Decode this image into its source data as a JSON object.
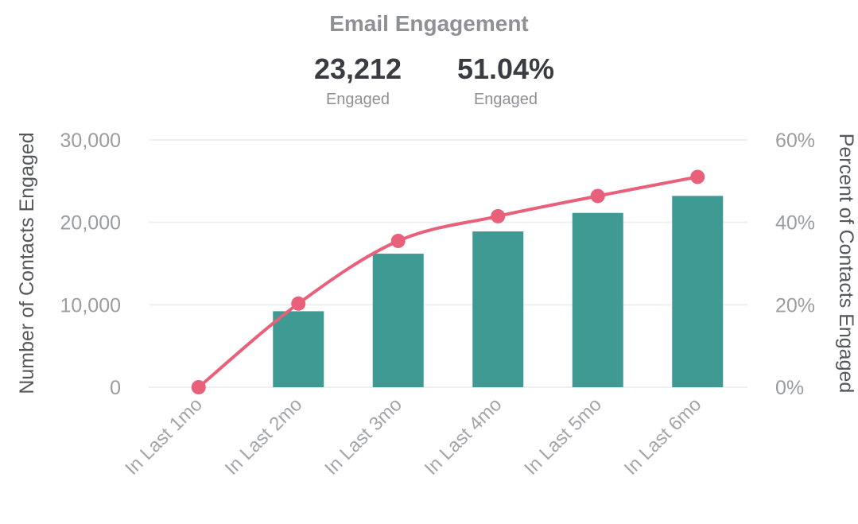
{
  "chart_data": {
    "type": "bar+line",
    "title": "Email Engagement",
    "kpis": [
      {
        "value": "23,212",
        "label": "Engaged"
      },
      {
        "value": "51.04%",
        "label": "Engaged"
      }
    ],
    "categories": [
      "In Last 1mo",
      "In Last 2mo",
      "In Last 3mo",
      "In Last 4mo",
      "In Last 5mo",
      "In Last 6mo"
    ],
    "series": [
      {
        "name": "Number of Contacts Engaged",
        "type": "bar",
        "axis": "left",
        "color": "#3f9a93",
        "values": [
          0,
          9220,
          16200,
          18900,
          21150,
          23212
        ]
      },
      {
        "name": "Percent of Contacts Engaged",
        "type": "line",
        "axis": "right",
        "color": "#e8607a",
        "values": [
          0,
          20.3,
          35.5,
          41.5,
          46.4,
          51.04
        ]
      }
    ],
    "ylabel": "Number of Contacts Engaged",
    "y2label": "Percent of Contacts Engaged",
    "ylim": [
      0,
      30000
    ],
    "y2lim": [
      0,
      60
    ],
    "yticks": [
      "0",
      "10,000",
      "20,000",
      "30,000"
    ],
    "y2ticks": [
      "0%",
      "20%",
      "40%",
      "60%"
    ],
    "grid": true
  }
}
